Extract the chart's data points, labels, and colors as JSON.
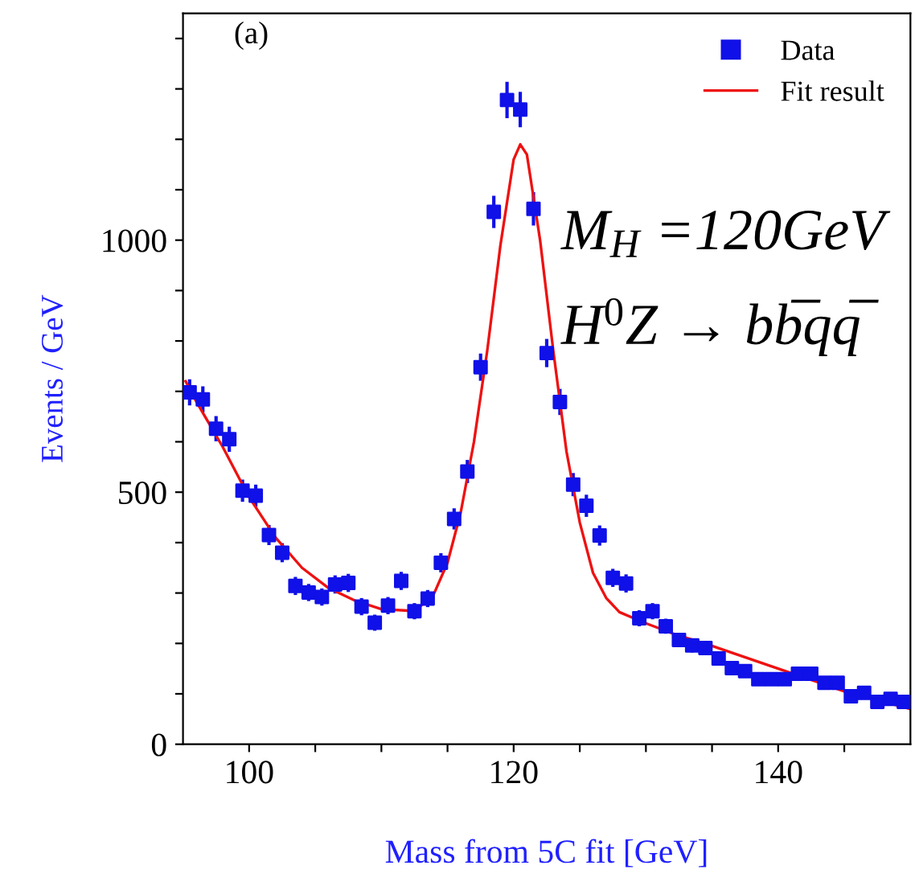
{
  "chart_data": {
    "type": "scatter",
    "xlabel": "Mass from 5C fit [GeV]",
    "ylabel": "Events / GeV",
    "xlim": [
      95,
      150
    ],
    "ylim": [
      0,
      1450
    ],
    "xticks": [
      {
        "value": 100,
        "label": "100"
      },
      {
        "value": 105,
        "label": null
      },
      {
        "value": 110,
        "label": null
      },
      {
        "value": 115,
        "label": null
      },
      {
        "value": 120,
        "label": "120"
      },
      {
        "value": 125,
        "label": null
      },
      {
        "value": 130,
        "label": null
      },
      {
        "value": 135,
        "label": null
      },
      {
        "value": 140,
        "label": "140"
      },
      {
        "value": 145,
        "label": null
      }
    ],
    "yticks": [
      0,
      {
        "value": 100,
        "label": null
      },
      {
        "value": 200,
        "label": null
      },
      {
        "value": 300,
        "label": null
      },
      {
        "value": 400,
        "label": null
      },
      500,
      {
        "value": 600,
        "label": null
      },
      {
        "value": 700,
        "label": null
      },
      {
        "value": 800,
        "label": null
      },
      {
        "value": 900,
        "label": null
      },
      1000,
      {
        "value": 1100,
        "label": null
      },
      {
        "value": 1200,
        "label": null
      },
      {
        "value": 1300,
        "label": null
      },
      {
        "value": 1400,
        "label": null
      }
    ],
    "grid": false,
    "legend": "top right",
    "annotations": [
      "(a)",
      "M$_{H}$ =120GeV",
      "H$^{0}$Z → bb̅qq̅"
    ],
    "series": [
      {
        "name": "Data",
        "color": "#1010e8",
        "marker": "square",
        "x": [
          95.5,
          96.5,
          97.5,
          98.5,
          99.5,
          100.5,
          101.5,
          102.5,
          103.5,
          104.5,
          105.5,
          106.5,
          107.5,
          108.5,
          109.5,
          110.5,
          111.5,
          112.5,
          113.5,
          114.5,
          115.5,
          116.5,
          117.5,
          118.5,
          119.5,
          120.5,
          121.5,
          122.5,
          123.5,
          124.5,
          125.5,
          126.5,
          127.5,
          128.5,
          129.5,
          130.5,
          131.5,
          132.5,
          133.5,
          134.5,
          135.5,
          136.5,
          137.5,
          138.5,
          139.5,
          140.5,
          141.5,
          142.5,
          143.5,
          144.5,
          145.5,
          146.5,
          147.5,
          148.5,
          149.5
        ],
        "values": [
          698,
          684,
          626,
          605,
          503,
          493,
          415,
          380,
          314,
          301,
          292,
          317,
          320,
          273,
          241,
          275,
          324,
          264,
          289,
          360,
          447,
          541,
          748,
          1056,
          1278,
          1259,
          1062,
          776,
          679,
          515,
          473,
          414,
          330,
          319,
          250,
          264,
          234,
          207,
          196,
          191,
          170,
          151,
          145,
          129,
          129,
          129,
          140,
          140,
          122,
          122,
          95,
          102,
          84,
          90,
          84
        ],
        "errors": [
          26,
          26,
          25,
          25,
          22,
          22,
          20,
          19,
          18,
          17,
          17,
          18,
          18,
          17,
          16,
          17,
          18,
          16,
          17,
          19,
          21,
          23,
          27,
          32,
          36,
          35,
          33,
          28,
          26,
          23,
          22,
          20,
          18,
          18,
          16,
          16,
          15,
          14,
          14,
          14,
          13,
          12,
          12,
          11,
          11,
          11,
          12,
          12,
          11,
          11,
          10,
          10,
          9,
          9,
          9
        ]
      },
      {
        "name": "Fit result",
        "type": "line",
        "color": "#ee1111",
        "marker": "none",
        "line_style": "solid",
        "x": [
          95.2,
          96,
          98,
          100,
          102,
          104,
          106,
          108,
          110,
          112,
          113,
          114,
          115,
          116,
          117,
          118,
          119,
          120,
          120.5,
          121,
          122,
          123,
          124,
          125,
          126,
          127,
          128,
          130,
          132,
          135,
          140,
          145,
          150
        ],
        "values": [
          720,
          680,
          590,
          490,
          410,
          350,
          310,
          285,
          268,
          265,
          275,
          300,
          360,
          460,
          600,
          780,
          990,
          1160,
          1190,
          1170,
          1000,
          780,
          580,
          440,
          340,
          290,
          262,
          240,
          220,
          195,
          150,
          105,
          70
        ]
      }
    ]
  }
}
